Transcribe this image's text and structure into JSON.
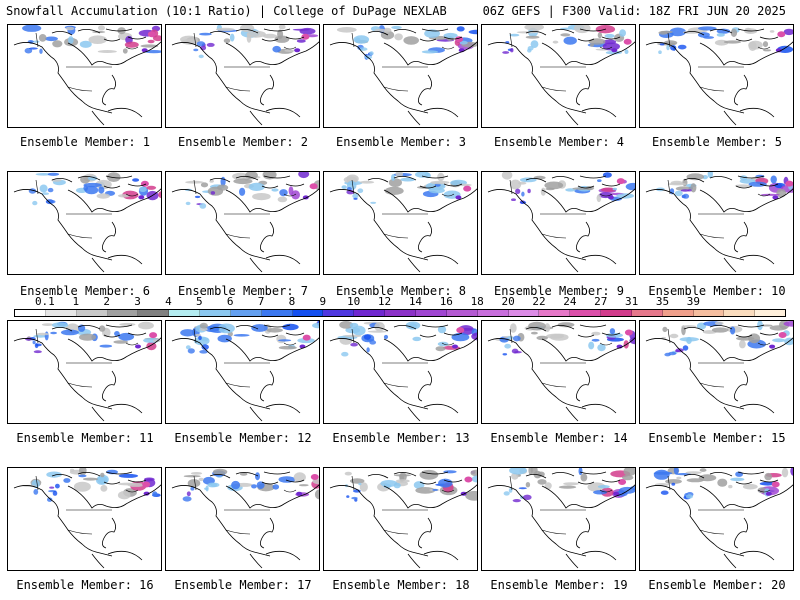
{
  "header": {
    "left": "Snowfall Accumulation (10:1 Ratio) | College of DuPage NEXLAB",
    "right": "06Z GEFS | F300 Valid: 18Z FRI JUN 20 2025"
  },
  "panels": [
    {
      "label": "Ensemble Member: 1"
    },
    {
      "label": "Ensemble Member: 2"
    },
    {
      "label": "Ensemble Member: 3"
    },
    {
      "label": "Ensemble Member: 4"
    },
    {
      "label": "Ensemble Member: 5"
    },
    {
      "label": "Ensemble Member: 6"
    },
    {
      "label": "Ensemble Member: 7"
    },
    {
      "label": "Ensemble Member: 8"
    },
    {
      "label": "Ensemble Member: 9"
    },
    {
      "label": "Ensemble Member: 10"
    },
    {
      "label": "Ensemble Member: 11"
    },
    {
      "label": "Ensemble Member: 12"
    },
    {
      "label": "Ensemble Member: 13"
    },
    {
      "label": "Ensemble Member: 14"
    },
    {
      "label": "Ensemble Member: 15"
    },
    {
      "label": "Ensemble Member: 16"
    },
    {
      "label": "Ensemble Member: 17"
    },
    {
      "label": "Ensemble Member: 18"
    },
    {
      "label": "Ensemble Member: 19"
    },
    {
      "label": "Ensemble Member: 20"
    }
  ],
  "colorbar": {
    "ticks": [
      "0.1",
      "1",
      "2",
      "3",
      "4",
      "5",
      "6",
      "7",
      "8",
      "9",
      "10",
      "12",
      "14",
      "16",
      "18",
      "20",
      "22",
      "24",
      "27",
      "31",
      "35",
      "39"
    ],
    "colors": [
      "#ffffff",
      "#e6e6e6",
      "#c8c8c8",
      "#a0a0a0",
      "#808080",
      "#b4ecf0",
      "#8cc8f0",
      "#64a0f0",
      "#3c78f0",
      "#1450f0",
      "#5038e0",
      "#7028d0",
      "#8c32c8",
      "#a046d2",
      "#b45ad2",
      "#c86edc",
      "#dc8ce6",
      "#e678c8",
      "#dc50aa",
      "#d23c8c",
      "#e6788c",
      "#f0a08c",
      "#f5bea0",
      "#fadcbe",
      "#fff0dc"
    ]
  }
}
